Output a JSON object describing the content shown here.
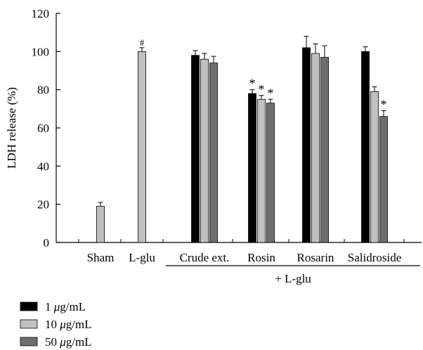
{
  "chart_data": {
    "type": "bar",
    "ylabel": "LDH release (%)",
    "ylim": [
      0,
      120
    ],
    "yticks": [
      0,
      20,
      40,
      60,
      80,
      100,
      120
    ],
    "groups": [
      {
        "label": "Sham",
        "bars": [
          {
            "series": 1,
            "value": 19,
            "err": 2,
            "mark": ""
          }
        ]
      },
      {
        "label": "L-glu",
        "bars": [
          {
            "series": 1,
            "value": 100,
            "err": 2,
            "mark": "#"
          }
        ]
      },
      {
        "label": "Crude ext.",
        "bars": [
          {
            "series": 0,
            "value": 98,
            "err": 2.5,
            "mark": ""
          },
          {
            "series": 1,
            "value": 96,
            "err": 3,
            "mark": ""
          },
          {
            "series": 2,
            "value": 94,
            "err": 3.5,
            "mark": ""
          }
        ]
      },
      {
        "label": "Rosin",
        "bars": [
          {
            "series": 0,
            "value": 78,
            "err": 2,
            "mark": "*"
          },
          {
            "series": 1,
            "value": 75,
            "err": 2,
            "mark": "*"
          },
          {
            "series": 2,
            "value": 73,
            "err": 2,
            "mark": "*"
          }
        ]
      },
      {
        "label": "Rosarin",
        "bars": [
          {
            "series": 0,
            "value": 102,
            "err": 6,
            "mark": ""
          },
          {
            "series": 1,
            "value": 99,
            "err": 5,
            "mark": ""
          },
          {
            "series": 2,
            "value": 97,
            "err": 6,
            "mark": ""
          }
        ]
      },
      {
        "label": "Salidroside",
        "bars": [
          {
            "series": 0,
            "value": 100,
            "err": 2.5,
            "mark": ""
          },
          {
            "series": 1,
            "value": 79,
            "err": 2.5,
            "mark": ""
          },
          {
            "series": 2,
            "value": 66,
            "err": 3,
            "mark": "*"
          }
        ]
      }
    ],
    "bracket_label": "+ L-glu",
    "series": [
      {
        "name_num": "1",
        "name_mu": "μ",
        "name_unit": "g/mL",
        "color": "#000000"
      },
      {
        "name_num": "10",
        "name_mu": "μ",
        "name_unit": "g/mL",
        "color": "#c0c0c0"
      },
      {
        "name_num": "50",
        "name_mu": "μ",
        "name_unit": "g/mL",
        "color": "#6e6e6e"
      }
    ],
    "legend_position": "bottom-left",
    "grid": false
  }
}
